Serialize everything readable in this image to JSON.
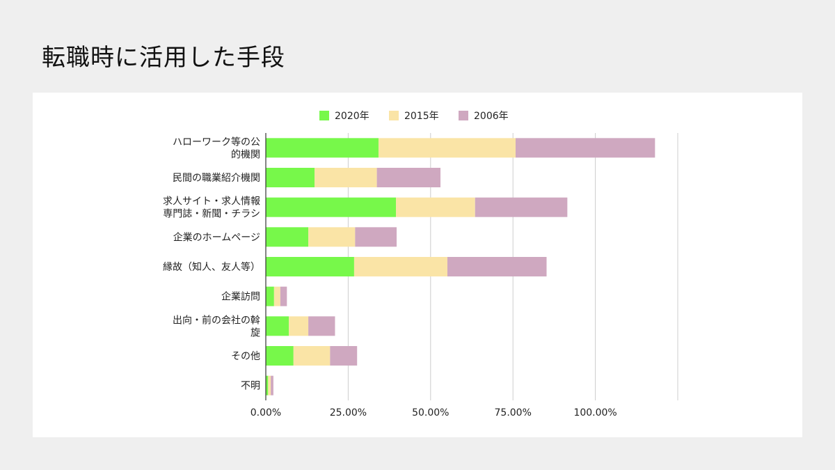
{
  "page": {
    "title": "転職時に活用した手段"
  },
  "chart_data": {
    "type": "bar",
    "orientation": "horizontal",
    "stacked": true,
    "title": "転職時に活用した手段",
    "categories": [
      [
        "ハローワーク等の公",
        "的機関"
      ],
      [
        "民間の職業紹介機関"
      ],
      [
        "求人サイト・求人情報",
        "専門誌・新聞・チラシ"
      ],
      [
        "企業のホームページ"
      ],
      [
        "縁故（知人、友人等）"
      ],
      [
        "企業訪問"
      ],
      [
        "出向・前の会社の斡",
        "旋"
      ],
      [
        "その他"
      ],
      [
        "不明"
      ]
    ],
    "series": [
      {
        "name": "2020年",
        "color": "#77f84a",
        "values": [
          34.2,
          14.8,
          39.5,
          12.9,
          26.8,
          2.5,
          7.0,
          8.4,
          0.7
        ]
      },
      {
        "name": "2015年",
        "color": "#fae4a6",
        "values": [
          41.6,
          18.9,
          24.0,
          14.2,
          28.3,
          1.9,
          5.9,
          11.1,
          0.8
        ]
      },
      {
        "name": "2006年",
        "color": "#cfa8c0",
        "values": [
          42.3,
          19.3,
          28.0,
          12.6,
          30.1,
          2.0,
          8.1,
          8.2,
          0.8
        ]
      }
    ],
    "xlim": [
      0,
      125
    ],
    "xticks": [
      0,
      25,
      50,
      75,
      100,
      125
    ],
    "xtick_labels": [
      "0.00%",
      "25.00%",
      "50.00%",
      "75.00%",
      "100.00%",
      ""
    ],
    "grid": true,
    "legend_position": "top",
    "xlabel": "",
    "ylabel": ""
  }
}
